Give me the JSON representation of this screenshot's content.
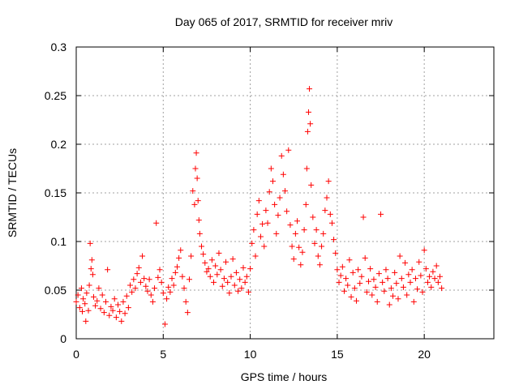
{
  "chart_data": {
    "type": "scatter",
    "title": "Day 065 of 2017, SRMTID for receiver mriv",
    "xlabel": "GPS time / hours",
    "ylabel": "SRMTID / TECUs",
    "xlim": [
      0,
      24
    ],
    "ylim": [
      0,
      0.3
    ],
    "xticks": [
      0,
      5,
      10,
      15,
      20
    ],
    "xtick_labels": [
      "0",
      "5",
      "10",
      "15",
      "20"
    ],
    "yticks": [
      0,
      0.05,
      0.1,
      0.15,
      0.2,
      0.25,
      0.3
    ],
    "ytick_labels": [
      "0",
      "0.05",
      "0.1",
      "0.15",
      "0.2",
      "0.25",
      "0.3"
    ],
    "grid": true,
    "marker": "+",
    "color": "#ff0000",
    "series": [
      {
        "name": "SRMTID",
        "points": [
          [
            0.0,
            0.038
          ],
          [
            0.1,
            0.045
          ],
          [
            0.2,
            0.032
          ],
          [
            0.3,
            0.052
          ],
          [
            0.35,
            0.028
          ],
          [
            0.4,
            0.041
          ],
          [
            0.5,
            0.036
          ],
          [
            0.55,
            0.018
          ],
          [
            0.6,
            0.047
          ],
          [
            0.7,
            0.029
          ],
          [
            0.75,
            0.055
          ],
          [
            0.8,
            0.098
          ],
          [
            0.85,
            0.072
          ],
          [
            0.9,
            0.081
          ],
          [
            0.95,
            0.066
          ],
          [
            1.0,
            0.043
          ],
          [
            1.1,
            0.034
          ],
          [
            1.2,
            0.039
          ],
          [
            1.3,
            0.052
          ],
          [
            1.4,
            0.031
          ],
          [
            1.5,
            0.045
          ],
          [
            1.6,
            0.027
          ],
          [
            1.7,
            0.038
          ],
          [
            1.8,
            0.071
          ],
          [
            1.9,
            0.024
          ],
          [
            2.0,
            0.033
          ],
          [
            2.1,
            0.029
          ],
          [
            2.2,
            0.041
          ],
          [
            2.3,
            0.022
          ],
          [
            2.4,
            0.035
          ],
          [
            2.5,
            0.028
          ],
          [
            2.6,
            0.018
          ],
          [
            2.7,
            0.038
          ],
          [
            2.8,
            0.026
          ],
          [
            2.9,
            0.044
          ],
          [
            3.0,
            0.032
          ],
          [
            3.1,
            0.055
          ],
          [
            3.2,
            0.048
          ],
          [
            3.3,
            0.061
          ],
          [
            3.4,
            0.052
          ],
          [
            3.5,
            0.067
          ],
          [
            3.6,
            0.073
          ],
          [
            3.7,
            0.058
          ],
          [
            3.8,
            0.085
          ],
          [
            3.9,
            0.062
          ],
          [
            4.0,
            0.054
          ],
          [
            4.1,
            0.049
          ],
          [
            4.2,
            0.061
          ],
          [
            4.3,
            0.045
          ],
          [
            4.4,
            0.038
          ],
          [
            4.5,
            0.052
          ],
          [
            4.6,
            0.119
          ],
          [
            4.7,
            0.063
          ],
          [
            4.8,
            0.071
          ],
          [
            4.9,
            0.058
          ],
          [
            5.0,
            0.047
          ],
          [
            5.1,
            0.015
          ],
          [
            5.2,
            0.041
          ],
          [
            5.3,
            0.053
          ],
          [
            5.4,
            0.048
          ],
          [
            5.5,
            0.062
          ],
          [
            5.6,
            0.055
          ],
          [
            5.7,
            0.068
          ],
          [
            5.8,
            0.074
          ],
          [
            5.9,
            0.083
          ],
          [
            6.0,
            0.091
          ],
          [
            6.1,
            0.064
          ],
          [
            6.2,
            0.052
          ],
          [
            6.3,
            0.038
          ],
          [
            6.4,
            0.027
          ],
          [
            6.5,
            0.061
          ],
          [
            6.6,
            0.085
          ],
          [
            6.7,
            0.152
          ],
          [
            6.8,
            0.138
          ],
          [
            6.85,
            0.175
          ],
          [
            6.9,
            0.191
          ],
          [
            6.95,
            0.165
          ],
          [
            7.0,
            0.142
          ],
          [
            7.05,
            0.122
          ],
          [
            7.1,
            0.108
          ],
          [
            7.2,
            0.095
          ],
          [
            7.3,
            0.087
          ],
          [
            7.4,
            0.078
          ],
          [
            7.5,
            0.069
          ],
          [
            7.6,
            0.072
          ],
          [
            7.7,
            0.064
          ],
          [
            7.8,
            0.081
          ],
          [
            7.9,
            0.058
          ],
          [
            8.0,
            0.075
          ],
          [
            8.1,
            0.066
          ],
          [
            8.2,
            0.088
          ],
          [
            8.3,
            0.071
          ],
          [
            8.4,
            0.054
          ],
          [
            8.5,
            0.062
          ],
          [
            8.6,
            0.079
          ],
          [
            8.7,
            0.058
          ],
          [
            8.8,
            0.047
          ],
          [
            8.9,
            0.064
          ],
          [
            9.0,
            0.082
          ],
          [
            9.1,
            0.055
          ],
          [
            9.2,
            0.068
          ],
          [
            9.3,
            0.049
          ],
          [
            9.4,
            0.061
          ],
          [
            9.5,
            0.052
          ],
          [
            9.6,
            0.073
          ],
          [
            9.7,
            0.058
          ],
          [
            9.8,
            0.064
          ],
          [
            9.9,
            0.048
          ],
          [
            10.0,
            0.072
          ],
          [
            10.1,
            0.098
          ],
          [
            10.2,
            0.112
          ],
          [
            10.3,
            0.085
          ],
          [
            10.4,
            0.128
          ],
          [
            10.5,
            0.142
          ],
          [
            10.6,
            0.105
          ],
          [
            10.7,
            0.118
          ],
          [
            10.8,
            0.095
          ],
          [
            10.9,
            0.132
          ],
          [
            11.0,
            0.119
          ],
          [
            11.1,
            0.151
          ],
          [
            11.2,
            0.175
          ],
          [
            11.3,
            0.162
          ],
          [
            11.4,
            0.138
          ],
          [
            11.5,
            0.108
          ],
          [
            11.6,
            0.127
          ],
          [
            11.7,
            0.145
          ],
          [
            11.8,
            0.188
          ],
          [
            11.9,
            0.169
          ],
          [
            12.0,
            0.152
          ],
          [
            12.1,
            0.131
          ],
          [
            12.2,
            0.194
          ],
          [
            12.3,
            0.117
          ],
          [
            12.4,
            0.095
          ],
          [
            12.5,
            0.082
          ],
          [
            12.6,
            0.108
          ],
          [
            12.7,
            0.121
          ],
          [
            12.8,
            0.094
          ],
          [
            12.9,
            0.076
          ],
          [
            13.0,
            0.089
          ],
          [
            13.1,
            0.112
          ],
          [
            13.2,
            0.138
          ],
          [
            13.25,
            0.175
          ],
          [
            13.3,
            0.213
          ],
          [
            13.35,
            0.233
          ],
          [
            13.4,
            0.257
          ],
          [
            13.45,
            0.221
          ],
          [
            13.5,
            0.158
          ],
          [
            13.6,
            0.125
          ],
          [
            13.7,
            0.098
          ],
          [
            13.8,
            0.112
          ],
          [
            13.9,
            0.085
          ],
          [
            14.0,
            0.076
          ],
          [
            14.1,
            0.095
          ],
          [
            14.2,
            0.108
          ],
          [
            14.3,
            0.132
          ],
          [
            14.4,
            0.145
          ],
          [
            14.5,
            0.162
          ],
          [
            14.6,
            0.128
          ],
          [
            14.7,
            0.119
          ],
          [
            14.8,
            0.102
          ],
          [
            14.9,
            0.088
          ],
          [
            15.0,
            0.071
          ],
          [
            15.1,
            0.058
          ],
          [
            15.2,
            0.065
          ],
          [
            15.3,
            0.074
          ],
          [
            15.4,
            0.049
          ],
          [
            15.5,
            0.062
          ],
          [
            15.6,
            0.055
          ],
          [
            15.7,
            0.081
          ],
          [
            15.8,
            0.043
          ],
          [
            15.9,
            0.068
          ],
          [
            16.0,
            0.052
          ],
          [
            16.1,
            0.039
          ],
          [
            16.2,
            0.071
          ],
          [
            16.3,
            0.057
          ],
          [
            16.4,
            0.064
          ],
          [
            16.5,
            0.125
          ],
          [
            16.6,
            0.083
          ],
          [
            16.7,
            0.048
          ],
          [
            16.8,
            0.059
          ],
          [
            16.9,
            0.072
          ],
          [
            17.0,
            0.045
          ],
          [
            17.1,
            0.061
          ],
          [
            17.2,
            0.053
          ],
          [
            17.3,
            0.038
          ],
          [
            17.4,
            0.067
          ],
          [
            17.5,
            0.128
          ],
          [
            17.6,
            0.058
          ],
          [
            17.7,
            0.049
          ],
          [
            17.8,
            0.071
          ],
          [
            17.9,
            0.062
          ],
          [
            18.0,
            0.035
          ],
          [
            18.1,
            0.052
          ],
          [
            18.2,
            0.044
          ],
          [
            18.3,
            0.068
          ],
          [
            18.4,
            0.057
          ],
          [
            18.5,
            0.041
          ],
          [
            18.6,
            0.085
          ],
          [
            18.7,
            0.062
          ],
          [
            18.8,
            0.053
          ],
          [
            18.9,
            0.078
          ],
          [
            19.0,
            0.045
          ],
          [
            19.1,
            0.066
          ],
          [
            19.2,
            0.058
          ],
          [
            19.3,
            0.071
          ],
          [
            19.4,
            0.038
          ],
          [
            19.5,
            0.062
          ],
          [
            19.6,
            0.051
          ],
          [
            19.7,
            0.079
          ],
          [
            19.8,
            0.065
          ],
          [
            19.9,
            0.048
          ],
          [
            20.0,
            0.091
          ],
          [
            20.1,
            0.072
          ],
          [
            20.2,
            0.058
          ],
          [
            20.3,
            0.064
          ],
          [
            20.4,
            0.053
          ],
          [
            20.5,
            0.069
          ],
          [
            20.6,
            0.062
          ],
          [
            20.7,
            0.075
          ],
          [
            20.8,
            0.058
          ],
          [
            20.9,
            0.064
          ],
          [
            21.0,
            0.052
          ]
        ]
      }
    ]
  }
}
